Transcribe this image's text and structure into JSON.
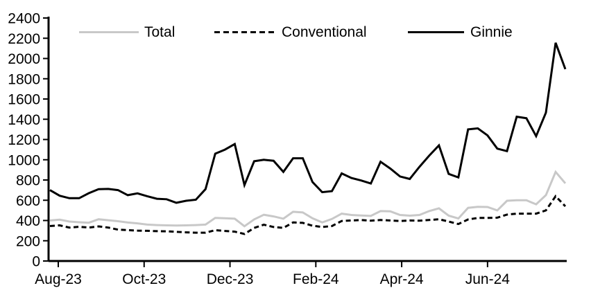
{
  "chart_data": {
    "type": "line",
    "title": "",
    "x_axis": {
      "tick_labels": [
        "Aug-23",
        "Oct-23",
        "Dec-23",
        "Feb-24",
        "Apr-24",
        "Jun-24"
      ]
    },
    "y_axis": {
      "min": 0,
      "max": 2400,
      "step": 200,
      "tick_labels": [
        "0",
        "200",
        "400",
        "600",
        "800",
        "1000",
        "1200",
        "1400",
        "1600",
        "1800",
        "2000",
        "2200",
        "2400"
      ]
    },
    "legend_position": "top",
    "grid": "off",
    "colors": {
      "total": "#c8c8c8",
      "conventional": "#000000",
      "ginnie": "#000000",
      "axis": "#000000"
    },
    "series": [
      {
        "name": "Total",
        "key": "total",
        "color": "#c8c8c8",
        "style": "solid",
        "values": [
          400,
          408,
          390,
          383,
          378,
          412,
          403,
          393,
          380,
          372,
          360,
          355,
          352,
          350,
          352,
          355,
          360,
          425,
          422,
          418,
          343,
          411,
          457,
          440,
          418,
          486,
          479,
          422,
          381,
          415,
          468,
          455,
          450,
          445,
          493,
          490,
          455,
          448,
          455,
          493,
          520,
          448,
          420,
          525,
          535,
          533,
          500,
          595,
          600,
          600,
          560,
          650,
          880,
          767
        ]
      },
      {
        "name": "Conventional",
        "key": "conventional",
        "color": "#000000",
        "style": "dashed",
        "values": [
          345,
          352,
          330,
          338,
          330,
          342,
          330,
          310,
          305,
          300,
          298,
          295,
          293,
          288,
          283,
          280,
          280,
          304,
          297,
          290,
          267,
          327,
          358,
          336,
          327,
          381,
          377,
          349,
          336,
          345,
          395,
          400,
          405,
          398,
          405,
          400,
          395,
          400,
          398,
          405,
          412,
          390,
          365,
          410,
          425,
          425,
          428,
          458,
          468,
          468,
          468,
          500,
          640,
          540
        ]
      },
      {
        "name": "Ginnie",
        "key": "ginnie",
        "color": "#000000",
        "style": "solid",
        "values": [
          700,
          645,
          620,
          620,
          670,
          710,
          712,
          700,
          650,
          668,
          640,
          615,
          610,
          575,
          595,
          605,
          710,
          1060,
          1100,
          1155,
          750,
          985,
          1000,
          990,
          880,
          1015,
          1015,
          780,
          680,
          690,
          865,
          820,
          795,
          765,
          980,
          913,
          835,
          810,
          930,
          1040,
          1142,
          860,
          825,
          1300,
          1310,
          1240,
          1110,
          1085,
          1425,
          1410,
          1233,
          1465,
          2155,
          1895
        ]
      }
    ]
  }
}
